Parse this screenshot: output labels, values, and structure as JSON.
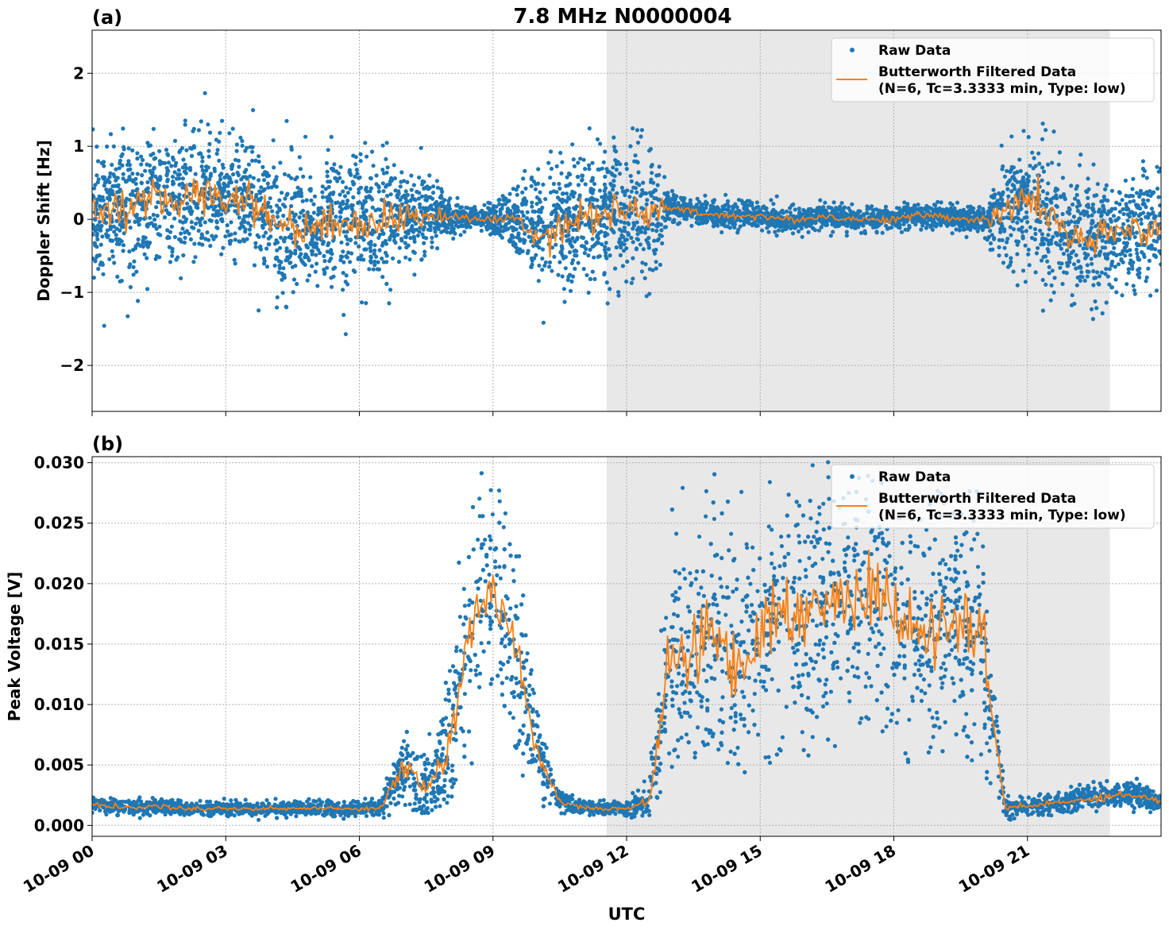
{
  "title": "7.8 MHz N0000004",
  "xlabel": "UTC",
  "x_ticks": [
    "10-09 00",
    "10-09 03",
    "10-09 06",
    "10-09 09",
    "10-09 12",
    "10-09 15",
    "10-09 18",
    "10-09 21"
  ],
  "legend": {
    "raw": "Raw Data",
    "filtered_line1": "Butterworth Filtered Data",
    "filtered_line2": "(N=6, Tc=3.3333 min, Type: low)"
  },
  "colors": {
    "raw": "#1f77b4",
    "filtered": "#ff7f0e",
    "shade": "#e8e8e8"
  },
  "chart_data": [
    {
      "type": "scatter",
      "panel_label": "(a)",
      "ylabel": "Doppler Shift [Hz]",
      "xlim_hours": [
        0,
        24
      ],
      "ylim": [
        -2.63,
        2.59
      ],
      "y_ticks": [
        -2,
        -1,
        0,
        1,
        2
      ],
      "y_tick_labels": [
        "−2",
        "−1",
        "0",
        "1",
        "2"
      ],
      "grid": true,
      "legend_placement": "top-right",
      "shaded_interval_hours": [
        11.55,
        22.85
      ],
      "sample_hours_step": 0.5,
      "filtered_values": [
        0.0,
        0.2,
        0.15,
        0.25,
        0.3,
        0.35,
        0.3,
        0.3,
        0.0,
        -0.1,
        -0.1,
        -0.05,
        -0.05,
        0.0,
        0.0,
        0.05,
        0.05,
        0.0,
        0.0,
        0.0,
        -0.2,
        -0.1,
        0.05,
        0.1,
        0.1,
        0.1,
        0.15,
        0.1,
        0.05,
        0.05,
        0.05,
        0.0,
        0.0,
        0.05,
        0.0,
        0.0,
        0.0,
        0.05,
        0.05,
        0.0,
        0.0,
        0.05,
        0.35,
        0.05,
        -0.3,
        -0.3,
        -0.2,
        -0.1,
        -0.15
      ],
      "raw_spread": [
        0.45,
        0.45,
        0.45,
        0.45,
        0.45,
        0.45,
        0.45,
        0.45,
        0.45,
        0.45,
        0.45,
        0.45,
        0.45,
        0.45,
        0.4,
        0.25,
        0.12,
        0.08,
        0.1,
        0.2,
        0.4,
        0.45,
        0.45,
        0.45,
        0.45,
        0.45,
        0.1,
        0.08,
        0.08,
        0.08,
        0.08,
        0.08,
        0.08,
        0.08,
        0.08,
        0.08,
        0.08,
        0.08,
        0.08,
        0.08,
        0.08,
        0.4,
        0.45,
        0.45,
        0.42,
        0.4,
        0.4,
        0.4,
        0.4
      ]
    },
    {
      "type": "scatter",
      "panel_label": "(b)",
      "ylabel": "Peak Voltage [V]",
      "xlim_hours": [
        0,
        24
      ],
      "ylim": [
        -0.0009,
        0.0305
      ],
      "y_ticks": [
        0,
        0.005,
        0.01,
        0.015,
        0.02,
        0.025,
        0.03
      ],
      "y_tick_labels": [
        "0.000",
        "0.005",
        "0.010",
        "0.015",
        "0.020",
        "0.025",
        "0.030"
      ],
      "grid": true,
      "legend_placement": "top-right",
      "shaded_interval_hours": [
        11.55,
        22.85
      ],
      "sample_hours_step": 0.5,
      "filtered_values": [
        0.0018,
        0.0015,
        0.0015,
        0.0016,
        0.0014,
        0.0014,
        0.0014,
        0.0014,
        0.0014,
        0.0014,
        0.0014,
        0.0014,
        0.0014,
        0.0015,
        0.005,
        0.003,
        0.006,
        0.016,
        0.02,
        0.015,
        0.006,
        0.002,
        0.0015,
        0.0014,
        0.0014,
        0.002,
        0.014,
        0.014,
        0.016,
        0.013,
        0.016,
        0.018,
        0.017,
        0.019,
        0.018,
        0.02,
        0.017,
        0.016,
        0.016,
        0.017,
        0.015,
        0.0014,
        0.0016,
        0.0018,
        0.002,
        0.0023,
        0.0025,
        0.0025,
        0.002
      ],
      "raw_spread": [
        0.0003,
        0.0003,
        0.0003,
        0.0003,
        0.0003,
        0.0003,
        0.0003,
        0.0003,
        0.0003,
        0.0003,
        0.0003,
        0.0003,
        0.0003,
        0.0004,
        0.0015,
        0.0015,
        0.003,
        0.004,
        0.004,
        0.004,
        0.0015,
        0.0004,
        0.0003,
        0.0003,
        0.0003,
        0.0008,
        0.005,
        0.005,
        0.005,
        0.005,
        0.005,
        0.005,
        0.005,
        0.005,
        0.005,
        0.005,
        0.005,
        0.005,
        0.005,
        0.005,
        0.005,
        0.0004,
        0.0004,
        0.0004,
        0.0005,
        0.0005,
        0.0005,
        0.0005,
        0.0005
      ]
    }
  ]
}
